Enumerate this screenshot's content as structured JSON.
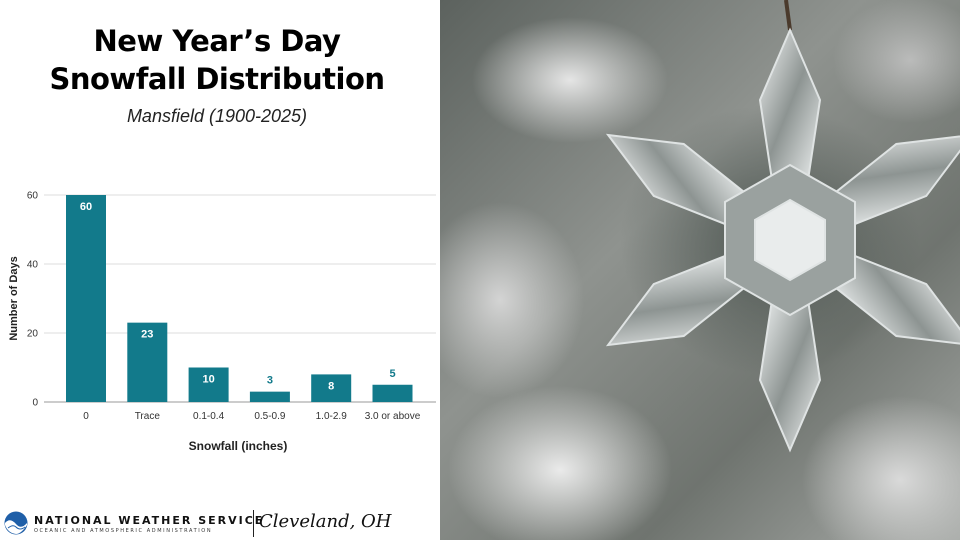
{
  "title_line1": "New Year’s Day",
  "title_line2": "Snowfall Distribution",
  "subtitle": "Mansfield (1900-2025)",
  "chart_data": {
    "type": "bar",
    "categories": [
      "0",
      "Trace",
      "0.1-0.4",
      "0.5-0.9",
      "1.0-2.9",
      "3.0 or above"
    ],
    "values": [
      60,
      23,
      10,
      3,
      8,
      5
    ],
    "xlabel": "Snowfall (inches)",
    "ylabel": "Number of Days",
    "ylim": [
      0,
      60
    ],
    "yticks": [
      0,
      20,
      40,
      60
    ],
    "bar_color": "#127a8b",
    "grid": true,
    "legend": "none"
  },
  "footer": {
    "agency": "NATIONAL WEATHER SERVICE",
    "agency_sub": "OCEANIC AND ATMOSPHERIC ADMINISTRATION",
    "office": "Cleveland, OH"
  },
  "colors": {
    "accent": "#127a8b",
    "noaa_blue": "#1f5fa8"
  },
  "photo": "snowflake-ornament"
}
